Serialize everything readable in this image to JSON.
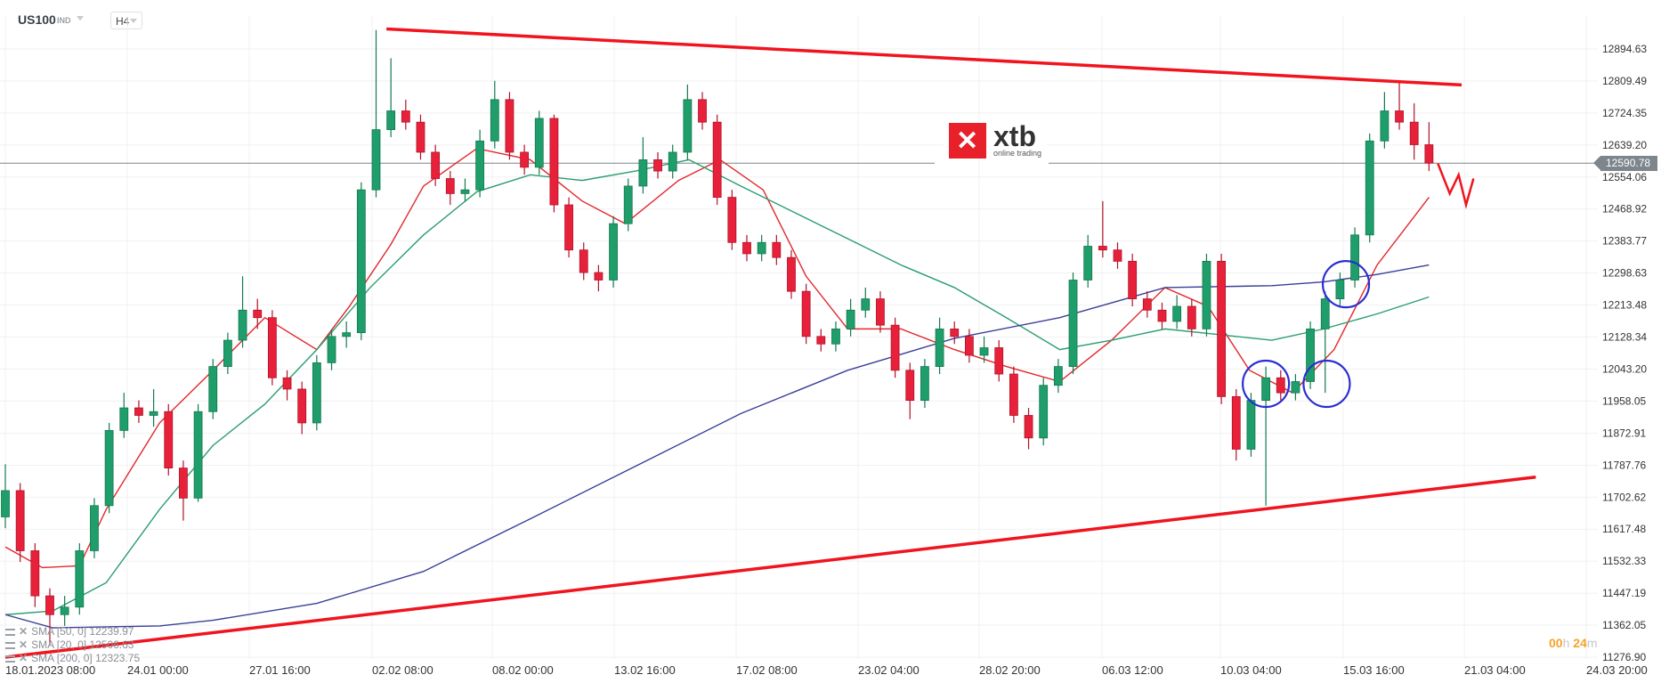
{
  "header": {
    "symbol": "US100",
    "symbol_type": "IND",
    "timeframe": "H4"
  },
  "logo": {
    "brand": "xtb",
    "tagline": "online trading"
  },
  "countdown": {
    "hours": "00",
    "h": "h",
    "minutes": "24",
    "m": "m"
  },
  "colors": {
    "up": "#1f9d6a",
    "down": "#e8213a",
    "sma20": "#e3262c",
    "sma50": "#2a9d6f",
    "sma200": "#3b3f98",
    "trendline": "#f0141e",
    "circles": "#2a2fd0",
    "price_line": "#7d868c",
    "countdown": "#f7a329"
  },
  "legend": [
    {
      "label": "SMA [50,  0] 12239.97"
    },
    {
      "label": "SMA [20,  0] 12506.63"
    },
    {
      "label": "SMA [200,  0] 12323.75"
    }
  ],
  "chart_data": {
    "type": "candlestick",
    "symbol": "US100",
    "timeframe": "H4",
    "ylim": [
      11276.9,
      12894.63
    ],
    "yticks": [
      "12894.63",
      "12809.49",
      "12724.35",
      "12639.20",
      "12554.06",
      "12468.92",
      "12383.77",
      "12298.63",
      "12213.48",
      "12128.34",
      "12043.20",
      "11958.05",
      "11872.91",
      "11787.76",
      "11702.62",
      "11617.48",
      "11532.33",
      "11447.19",
      "11362.05",
      "11276.90"
    ],
    "xticks": [
      "18.01.2023  08:00",
      "24.01  00:00",
      "27.01  16:00",
      "02.02  08:00",
      "08.02  00:00",
      "13.02  16:00",
      "17.02  08:00",
      "23.02  04:00",
      "28.02  20:00",
      "06.03  12:00",
      "10.03  04:00",
      "15.03  16:00",
      "21.03  04:00",
      "24.03  20:00"
    ],
    "current_price": "12590.78",
    "grid": true,
    "candles": [
      [
        11650,
        11790,
        11620,
        11720
      ],
      [
        11720,
        11740,
        11530,
        11560
      ],
      [
        11560,
        11580,
        11410,
        11440
      ],
      [
        11440,
        11460,
        11310,
        11390
      ],
      [
        11390,
        11440,
        11360,
        11410
      ],
      [
        11410,
        11580,
        11390,
        11560
      ],
      [
        11560,
        11700,
        11540,
        11680
      ],
      [
        11680,
        11900,
        11660,
        11880
      ],
      [
        11880,
        11980,
        11860,
        11940
      ],
      [
        11940,
        11960,
        11900,
        11920
      ],
      [
        11920,
        11990,
        11890,
        11930
      ],
      [
        11930,
        11950,
        11760,
        11780
      ],
      [
        11780,
        11800,
        11640,
        11700
      ],
      [
        11700,
        11950,
        11690,
        11930
      ],
      [
        11930,
        12070,
        11910,
        12050
      ],
      [
        12050,
        12140,
        12030,
        12120
      ],
      [
        12120,
        12290,
        12100,
        12200
      ],
      [
        12200,
        12230,
        12150,
        12180
      ],
      [
        12180,
        12200,
        12000,
        12020
      ],
      [
        12020,
        12040,
        11960,
        11990
      ],
      [
        11990,
        12010,
        11870,
        11900
      ],
      [
        11900,
        12080,
        11880,
        12060
      ],
      [
        12060,
        12150,
        12040,
        12130
      ],
      [
        12130,
        12170,
        12100,
        12140
      ],
      [
        12140,
        12540,
        12120,
        12520
      ],
      [
        12520,
        12945,
        12500,
        12680
      ],
      [
        12680,
        12870,
        12660,
        12730
      ],
      [
        12730,
        12760,
        12680,
        12700
      ],
      [
        12700,
        12720,
        12600,
        12620
      ],
      [
        12620,
        12640,
        12530,
        12550
      ],
      [
        12550,
        12570,
        12480,
        12510
      ],
      [
        12510,
        12550,
        12490,
        12520
      ],
      [
        12520,
        12680,
        12500,
        12650
      ],
      [
        12650,
        12810,
        12630,
        12760
      ],
      [
        12760,
        12780,
        12600,
        12620
      ],
      [
        12620,
        12640,
        12560,
        12580
      ],
      [
        12580,
        12730,
        12560,
        12710
      ],
      [
        12710,
        12720,
        12460,
        12480
      ],
      [
        12480,
        12500,
        12340,
        12360
      ],
      [
        12360,
        12380,
        12280,
        12300
      ],
      [
        12300,
        12320,
        12250,
        12280
      ],
      [
        12280,
        12450,
        12260,
        12430
      ],
      [
        12430,
        12550,
        12410,
        12530
      ],
      [
        12530,
        12660,
        12510,
        12600
      ],
      [
        12600,
        12620,
        12550,
        12570
      ],
      [
        12570,
        12640,
        12550,
        12620
      ],
      [
        12620,
        12800,
        12600,
        12760
      ],
      [
        12760,
        12780,
        12680,
        12700
      ],
      [
        12700,
        12720,
        12480,
        12500
      ],
      [
        12500,
        12520,
        12360,
        12380
      ],
      [
        12380,
        12400,
        12330,
        12350
      ],
      [
        12350,
        12400,
        12330,
        12380
      ],
      [
        12380,
        12400,
        12320,
        12340
      ],
      [
        12340,
        12360,
        12230,
        12250
      ],
      [
        12250,
        12270,
        12110,
        12130
      ],
      [
        12130,
        12150,
        12090,
        12110
      ],
      [
        12110,
        12170,
        12090,
        12150
      ],
      [
        12150,
        12230,
        12130,
        12200
      ],
      [
        12200,
        12260,
        12180,
        12230
      ],
      [
        12230,
        12250,
        12140,
        12160
      ],
      [
        12160,
        12180,
        12020,
        12040
      ],
      [
        12040,
        12060,
        11910,
        11960
      ],
      [
        11960,
        12070,
        11940,
        12050
      ],
      [
        12050,
        12180,
        12030,
        12150
      ],
      [
        12150,
        12170,
        12110,
        12130
      ],
      [
        12130,
        12150,
        12060,
        12080
      ],
      [
        12080,
        12130,
        12060,
        12100
      ],
      [
        12100,
        12120,
        12010,
        12030
      ],
      [
        12030,
        12050,
        11900,
        11920
      ],
      [
        11920,
        11940,
        11830,
        11860
      ],
      [
        11860,
        12020,
        11840,
        12000
      ],
      [
        12000,
        12070,
        11980,
        12050
      ],
      [
        12050,
        12300,
        12030,
        12280
      ],
      [
        12280,
        12400,
        12260,
        12370
      ],
      [
        12370,
        12490,
        12340,
        12360
      ],
      [
        12360,
        12380,
        12310,
        12330
      ],
      [
        12330,
        12350,
        12210,
        12230
      ],
      [
        12230,
        12250,
        12180,
        12200
      ],
      [
        12200,
        12220,
        12150,
        12170
      ],
      [
        12170,
        12240,
        12150,
        12210
      ],
      [
        12210,
        12230,
        12130,
        12150
      ],
      [
        12150,
        12350,
        12130,
        12330
      ],
      [
        12330,
        12350,
        11950,
        11970
      ],
      [
        11970,
        11990,
        11800,
        11830
      ],
      [
        11830,
        11980,
        11810,
        11960
      ],
      [
        11960,
        12050,
        11680,
        12020
      ],
      [
        12020,
        12040,
        11960,
        11980
      ],
      [
        11980,
        12030,
        11960,
        12010
      ],
      [
        12010,
        12170,
        11990,
        12150
      ],
      [
        12150,
        12250,
        11980,
        12230
      ],
      [
        12230,
        12300,
        12210,
        12280
      ],
      [
        12280,
        12420,
        12260,
        12400
      ],
      [
        12400,
        12670,
        12380,
        12650
      ],
      [
        12650,
        12780,
        12630,
        12730
      ],
      [
        12730,
        12810,
        12680,
        12700
      ],
      [
        12700,
        12750,
        12600,
        12640
      ],
      [
        12640,
        12700,
        12570,
        12591
      ]
    ],
    "indicators": [
      {
        "name": "SMA [20,  0]",
        "points": [
          [
            0,
            11570
          ],
          [
            2.5,
            11515
          ],
          [
            5,
            11520
          ],
          [
            6.8,
            11670
          ],
          [
            10.4,
            11900
          ],
          [
            14,
            12040
          ],
          [
            17.5,
            12180
          ],
          [
            21,
            12095
          ],
          [
            23.2,
            12210
          ],
          [
            26,
            12375
          ],
          [
            28.2,
            12530
          ],
          [
            31.8,
            12630
          ],
          [
            35.4,
            12600
          ],
          [
            38.9,
            12490
          ],
          [
            41.8,
            12430
          ],
          [
            45.4,
            12545
          ],
          [
            48.2,
            12600
          ],
          [
            51.1,
            12520
          ],
          [
            54,
            12290
          ],
          [
            56.8,
            12150
          ],
          [
            60.4,
            12150
          ],
          [
            64,
            12095
          ],
          [
            67.5,
            12050
          ],
          [
            71.1,
            12010
          ],
          [
            74.6,
            12120
          ],
          [
            78.2,
            12260
          ],
          [
            81.1,
            12210
          ],
          [
            83.9,
            12040
          ],
          [
            86.8,
            11980
          ],
          [
            89.6,
            12095
          ],
          [
            92.5,
            12320
          ],
          [
            96,
            12500
          ]
        ]
      },
      {
        "name": "SMA [50,  0]",
        "points": [
          [
            0,
            11390
          ],
          [
            3.2,
            11400
          ],
          [
            6.8,
            11475
          ],
          [
            10.4,
            11670
          ],
          [
            14,
            11840
          ],
          [
            17.5,
            11950
          ],
          [
            21,
            12095
          ],
          [
            24.6,
            12260
          ],
          [
            28.2,
            12400
          ],
          [
            31.8,
            12515
          ],
          [
            35.4,
            12560
          ],
          [
            38.9,
            12545
          ],
          [
            42.5,
            12570
          ],
          [
            46.1,
            12600
          ],
          [
            49.6,
            12530
          ],
          [
            53.2,
            12460
          ],
          [
            56.8,
            12390
          ],
          [
            60.4,
            12320
          ],
          [
            64,
            12260
          ],
          [
            67.5,
            12180
          ],
          [
            71.1,
            12095
          ],
          [
            74.6,
            12120
          ],
          [
            78.2,
            12150
          ],
          [
            81.8,
            12135
          ],
          [
            85.4,
            12120
          ],
          [
            88.9,
            12150
          ],
          [
            92.5,
            12190
          ],
          [
            96,
            12235
          ]
        ]
      },
      {
        "name": "SMA [200,  0]",
        "points": [
          [
            0,
            11390
          ],
          [
            3.2,
            11355
          ],
          [
            10.4,
            11360
          ],
          [
            14,
            11375
          ],
          [
            21,
            11420
          ],
          [
            28.2,
            11505
          ],
          [
            35.4,
            11645
          ],
          [
            42.5,
            11785
          ],
          [
            49.6,
            11925
          ],
          [
            56.8,
            12040
          ],
          [
            64,
            12125
          ],
          [
            71.1,
            12180
          ],
          [
            78.2,
            12260
          ],
          [
            85.4,
            12265
          ],
          [
            88.9,
            12275
          ],
          [
            92.5,
            12295
          ],
          [
            96,
            12320
          ]
        ]
      }
    ],
    "annotations": {
      "trendlines": [
        {
          "from": [
            25.7,
            12948
          ],
          "to": [
            98.2,
            12799
          ]
        },
        {
          "from": [
            0,
            11277
          ],
          "to": [
            103.2,
            11756
          ]
        }
      ],
      "circles": [
        {
          "at": [
            85,
            12004
          ]
        },
        {
          "at": [
            89.1,
            12004
          ]
        },
        {
          "at": [
            90.4,
            12269
          ]
        }
      ],
      "zigzag": [
        [
          96.6,
          12590
        ],
        [
          97.4,
          12510
        ],
        [
          98,
          12560
        ],
        [
          98.5,
          12480
        ],
        [
          99,
          12550
        ]
      ]
    }
  }
}
